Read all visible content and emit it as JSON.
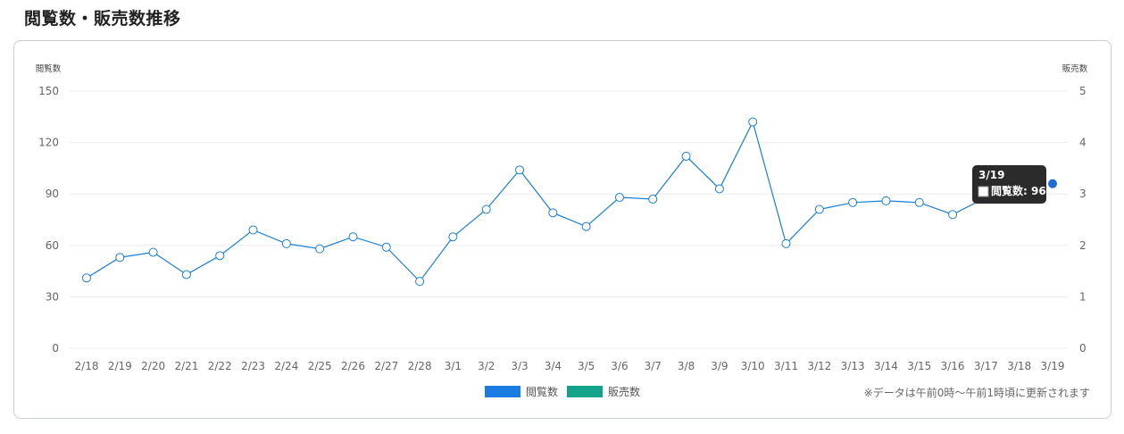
{
  "page": {
    "title": "閲覧数・販売数推移"
  },
  "chart_data": {
    "type": "line",
    "categories": [
      "2/18",
      "2/19",
      "2/20",
      "2/21",
      "2/22",
      "2/23",
      "2/24",
      "2/25",
      "2/26",
      "2/27",
      "2/28",
      "3/1",
      "3/2",
      "3/3",
      "3/4",
      "3/5",
      "3/6",
      "3/7",
      "3/8",
      "3/9",
      "3/10",
      "3/11",
      "3/12",
      "3/13",
      "3/14",
      "3/15",
      "3/16",
      "3/17",
      "3/18",
      "3/19"
    ],
    "series": [
      {
        "name": "閲覧数",
        "axis": "left",
        "color": "#1a7fd4",
        "swatch": "#1a7be0",
        "values": [
          41,
          53,
          56,
          43,
          54,
          69,
          61,
          58,
          65,
          59,
          39,
          65,
          81,
          104,
          79,
          71,
          88,
          87,
          112,
          93,
          132,
          61,
          81,
          85,
          86,
          85,
          78,
          88,
          null,
          96
        ]
      },
      {
        "name": "販売数",
        "axis": "right",
        "color": "#12a38a",
        "swatch": "#12a38a",
        "values": [
          0,
          0,
          0,
          0,
          0,
          0,
          0,
          0,
          0,
          0,
          0,
          0,
          0,
          0,
          0,
          0,
          0,
          0,
          0,
          0,
          0,
          0,
          0,
          0,
          0,
          0,
          0,
          0,
          0,
          0
        ]
      }
    ],
    "ylabel_left": "閲覧数",
    "ylabel_right": "販売数",
    "ylim_left": [
      0,
      150
    ],
    "yticks_left": [
      0,
      30,
      60,
      90,
      120,
      150
    ],
    "ylim_right": [
      0,
      5
    ],
    "yticks_right": [
      0,
      1,
      2,
      3,
      4,
      5
    ],
    "grid": true,
    "legend_position": "bottom-center",
    "tooltip": {
      "title": "3/19",
      "label": "閲覧数: 96"
    }
  },
  "footnote": "※データは午前0時〜午前1時頃に更新されます"
}
